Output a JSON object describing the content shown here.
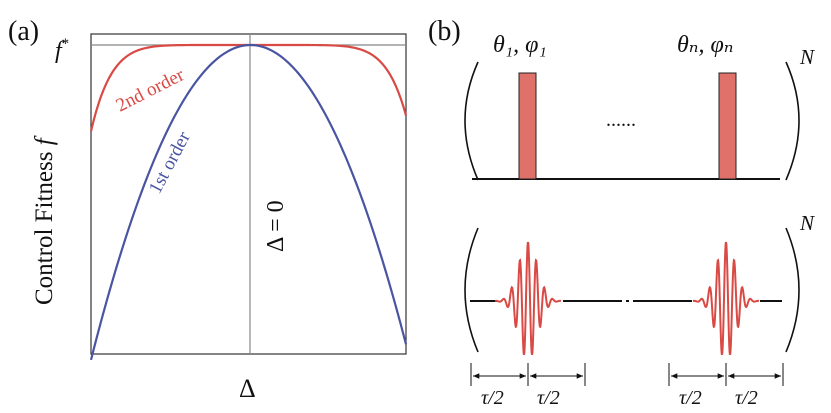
{
  "panel_a": {
    "label": "(a)",
    "f_star": "f*",
    "y_axis_label": "Control Fitness f",
    "x_axis_label": "Δ",
    "delta_zero_label": "Δ = 0",
    "curve_2nd_label": "2nd order",
    "curve_1st_label": "1st order",
    "colors": {
      "second_order": "#d94a45",
      "first_order": "#4a55a2",
      "axis": "#333333",
      "guide": "#888888"
    }
  },
  "panel_b": {
    "label": "(b)",
    "pulse_1_label": "θ₁, φ₁",
    "pulse_n_label": "θₙ, φₙ",
    "dots": "......",
    "repeat_top": "N",
    "repeat_bottom": "N",
    "tau_labels": [
      "τ/2",
      "τ/2",
      "τ/2",
      "τ/2"
    ],
    "colors": {
      "pulse_fill": "#e0706a",
      "pulse_stroke": "#222222",
      "wave": "#d94a45",
      "line": "#111111"
    }
  }
}
